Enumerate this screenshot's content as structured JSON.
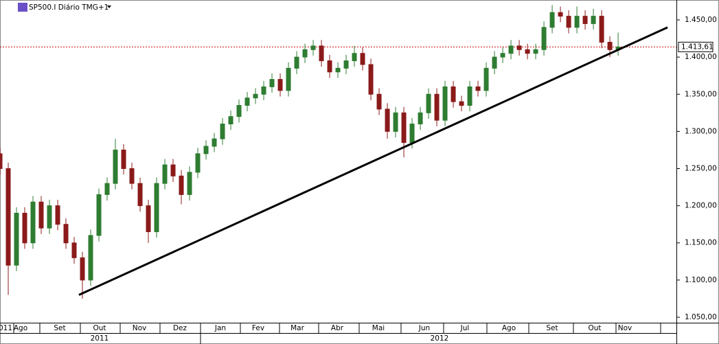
{
  "chart_data": {
    "type": "candlestick",
    "title": "SP500.I Diário TMG+1",
    "x": [
      0,
      4,
      8,
      12,
      16,
      20,
      24,
      28,
      32,
      36,
      40,
      44,
      48,
      52,
      56,
      60,
      64,
      68,
      72,
      76,
      80,
      84,
      88,
      92,
      96,
      100,
      104,
      108,
      112,
      116,
      120,
      124,
      128,
      132,
      136,
      140,
      144,
      148,
      152,
      156,
      160,
      164,
      168,
      172,
      176,
      180,
      184,
      188,
      192,
      196,
      200,
      204,
      208,
      212,
      216,
      220,
      224,
      228,
      232,
      236,
      240,
      244,
      248,
      252,
      256,
      260,
      264,
      268,
      272,
      276,
      280,
      284,
      288,
      292,
      296,
      300
    ],
    "open": [
      1270,
      1250,
      1120,
      1190,
      1150,
      1205,
      1170,
      1200,
      1175,
      1150,
      1130,
      1100,
      1160,
      1215,
      1230,
      1275,
      1250,
      1230,
      1200,
      1165,
      1230,
      1255,
      1240,
      1215,
      1245,
      1270,
      1280,
      1290,
      1310,
      1320,
      1335,
      1345,
      1350,
      1360,
      1370,
      1355,
      1385,
      1400,
      1410,
      1415,
      1395,
      1380,
      1385,
      1395,
      1405,
      1390,
      1350,
      1330,
      1300,
      1325,
      1285,
      1310,
      1325,
      1350,
      1315,
      1360,
      1340,
      1335,
      1360,
      1355,
      1385,
      1400,
      1405,
      1415,
      1410,
      1405,
      1410,
      1440,
      1460,
      1455,
      1440,
      1455,
      1445,
      1455,
      1420,
      1410
    ],
    "high": [
      1278,
      1258,
      1198,
      1198,
      1213,
      1213,
      1208,
      1208,
      1183,
      1158,
      1138,
      1168,
      1223,
      1238,
      1290,
      1283,
      1258,
      1238,
      1208,
      1238,
      1263,
      1263,
      1248,
      1253,
      1278,
      1288,
      1298,
      1318,
      1328,
      1343,
      1353,
      1358,
      1368,
      1378,
      1378,
      1393,
      1408,
      1418,
      1423,
      1423,
      1403,
      1393,
      1403,
      1415,
      1413,
      1398,
      1358,
      1338,
      1333,
      1333,
      1318,
      1333,
      1358,
      1358,
      1368,
      1368,
      1348,
      1368,
      1368,
      1393,
      1408,
      1413,
      1423,
      1423,
      1418,
      1418,
      1448,
      1470,
      1468,
      1463,
      1468,
      1463,
      1465,
      1463,
      1428,
      1433
    ],
    "low": [
      1242,
      1080,
      1112,
      1142,
      1142,
      1162,
      1162,
      1167,
      1142,
      1122,
      1075,
      1092,
      1152,
      1207,
      1222,
      1242,
      1222,
      1192,
      1150,
      1157,
      1222,
      1232,
      1202,
      1207,
      1237,
      1262,
      1272,
      1282,
      1302,
      1312,
      1327,
      1337,
      1342,
      1352,
      1347,
      1347,
      1377,
      1392,
      1402,
      1387,
      1372,
      1372,
      1377,
      1387,
      1382,
      1342,
      1322,
      1290,
      1292,
      1265,
      1277,
      1302,
      1317,
      1307,
      1307,
      1332,
      1327,
      1327,
      1347,
      1347,
      1377,
      1392,
      1397,
      1402,
      1397,
      1397,
      1402,
      1432,
      1447,
      1432,
      1432,
      1437,
      1437,
      1412,
      1400,
      1402
    ],
    "close": [
      1250,
      1120,
      1190,
      1150,
      1205,
      1170,
      1200,
      1175,
      1150,
      1130,
      1100,
      1160,
      1215,
      1230,
      1275,
      1250,
      1230,
      1200,
      1165,
      1230,
      1255,
      1240,
      1215,
      1245,
      1270,
      1280,
      1290,
      1310,
      1320,
      1335,
      1345,
      1350,
      1360,
      1370,
      1355,
      1385,
      1400,
      1410,
      1415,
      1395,
      1380,
      1385,
      1395,
      1405,
      1390,
      1350,
      1330,
      1300,
      1325,
      1285,
      1310,
      1325,
      1350,
      1315,
      1360,
      1340,
      1335,
      1360,
      1355,
      1385,
      1400,
      1405,
      1415,
      1410,
      1405,
      1410,
      1440,
      1460,
      1455,
      1440,
      1455,
      1445,
      1455,
      1420,
      1410,
      1413.61
    ],
    "up_color": "#2e7d32",
    "down_color": "#8b1a1a",
    "xlim": [
      0,
      328.3
    ],
    "ylim": [
      1042.6,
      1476.8
    ],
    "yticks": [
      {
        "value": 1050,
        "label": "1.050,00"
      },
      {
        "value": 1100,
        "label": "1.100,00"
      },
      {
        "value": 1150,
        "label": "1.150,00"
      },
      {
        "value": 1200,
        "label": "1.200,00"
      },
      {
        "value": 1250,
        "label": "1.250,00"
      },
      {
        "value": 1300,
        "label": "1.300,00"
      },
      {
        "value": 1350,
        "label": "1.350,00"
      },
      {
        "value": 1400,
        "label": "1.400,00"
      },
      {
        "value": 1450,
        "label": "1.450,00"
      }
    ],
    "last_price": {
      "value": 1413.61,
      "label": "1.413,61",
      "color": "#cc0000"
    },
    "trendline": {
      "x": [
        38.3,
        324
      ],
      "y": [
        1080,
        1440
      ]
    },
    "months": [
      "011",
      "Ago",
      "Set",
      "Out",
      "Nov",
      "Dez",
      "Jan",
      "Fev",
      "Mar",
      "Abr",
      "Mai",
      "Jun",
      "Jul",
      "Ago",
      "Set",
      "Out",
      "Nov"
    ],
    "years": [
      "2011",
      "2012"
    ]
  }
}
